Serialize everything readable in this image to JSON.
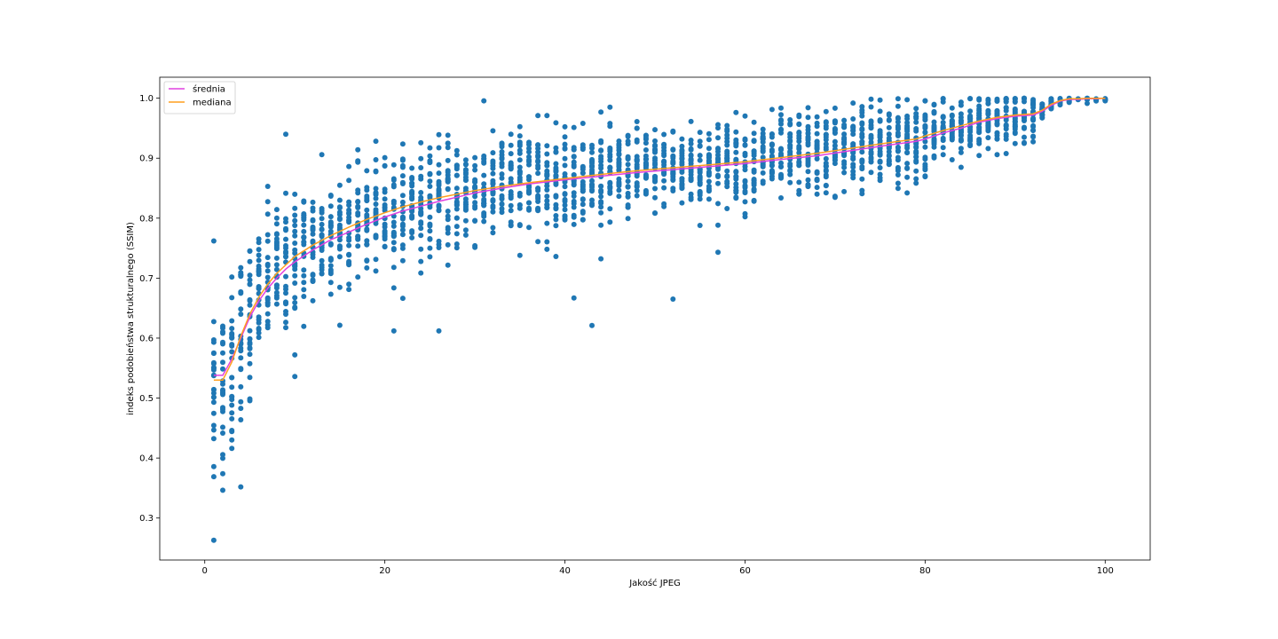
{
  "chart_data": {
    "type": "scatter",
    "title": "",
    "xlabel": "Jakość JPEG",
    "ylabel": "indeks podobieństwa strukturalnego (SSIM)",
    "xlim": [
      -5,
      105
    ],
    "ylim": [
      0.23,
      1.035
    ],
    "x_ticks": [
      0,
      20,
      40,
      60,
      80,
      100
    ],
    "y_ticks": [
      0.3,
      0.4,
      0.5,
      0.6,
      0.7,
      0.8,
      0.9,
      1.0
    ],
    "x_tick_labels": [
      "0",
      "20",
      "40",
      "60",
      "80",
      "100"
    ],
    "y_tick_labels": [
      "0.3",
      "0.4",
      "0.5",
      "0.6",
      "0.7",
      "0.8",
      "0.9",
      "1.0"
    ],
    "grid": false,
    "legend_position": "top-left",
    "scatter_color": "#1f77b4",
    "series": [
      {
        "name": "średnia",
        "color": "#e040e0",
        "x": [
          1,
          2,
          3,
          4,
          5,
          6,
          7,
          8,
          9,
          10,
          12,
          14,
          16,
          18,
          20,
          22,
          24,
          26,
          28,
          30,
          33,
          36,
          40,
          44,
          48,
          52,
          56,
          60,
          64,
          68,
          72,
          76,
          79,
          80,
          82,
          84,
          86,
          88,
          90,
          92,
          93,
          94,
          95,
          96,
          97,
          98,
          99,
          100
        ],
        "y": [
          0.538,
          0.538,
          0.565,
          0.6,
          0.635,
          0.662,
          0.683,
          0.7,
          0.715,
          0.727,
          0.747,
          0.764,
          0.777,
          0.79,
          0.802,
          0.812,
          0.82,
          0.828,
          0.835,
          0.842,
          0.85,
          0.857,
          0.864,
          0.87,
          0.876,
          0.881,
          0.886,
          0.891,
          0.898,
          0.904,
          0.913,
          0.922,
          0.928,
          0.932,
          0.942,
          0.95,
          0.96,
          0.966,
          0.97,
          0.972,
          0.978,
          0.988,
          0.995,
          0.998,
          0.998,
          0.999,
          0.999,
          1.0
        ]
      },
      {
        "name": "mediana",
        "color": "#ff9f1f",
        "x": [
          1,
          2,
          3,
          4,
          5,
          6,
          7,
          8,
          9,
          10,
          12,
          14,
          16,
          18,
          20,
          22,
          24,
          26,
          28,
          30,
          33,
          36,
          40,
          44,
          48,
          52,
          56,
          60,
          64,
          68,
          72,
          76,
          79,
          80,
          82,
          84,
          86,
          88,
          90,
          92,
          93,
          94,
          95,
          96,
          97,
          98,
          99,
          100
        ],
        "y": [
          0.53,
          0.53,
          0.56,
          0.603,
          0.64,
          0.668,
          0.69,
          0.708,
          0.722,
          0.736,
          0.755,
          0.771,
          0.785,
          0.798,
          0.809,
          0.819,
          0.827,
          0.834,
          0.84,
          0.846,
          0.853,
          0.859,
          0.866,
          0.873,
          0.879,
          0.884,
          0.889,
          0.894,
          0.901,
          0.908,
          0.917,
          0.926,
          0.932,
          0.937,
          0.946,
          0.954,
          0.962,
          0.968,
          0.972,
          0.974,
          0.98,
          0.99,
          0.996,
          0.999,
          0.999,
          1.0,
          1.0,
          1.0
        ]
      }
    ],
    "scatter_outliers": [
      [
        1,
        0.263
      ],
      [
        1,
        0.369
      ],
      [
        2,
        0.374
      ],
      [
        4,
        0.352
      ],
      [
        1,
        0.762
      ],
      [
        9,
        0.94
      ],
      [
        43,
        0.621
      ],
      [
        52,
        0.665
      ],
      [
        41,
        0.667
      ],
      [
        21,
        0.612
      ],
      [
        26,
        0.612
      ],
      [
        39,
        0.959
      ],
      [
        42,
        0.958
      ],
      [
        44,
        0.977
      ],
      [
        57,
        0.743
      ],
      [
        13,
        0.906
      ],
      [
        3,
        0.416
      ],
      [
        3,
        0.43
      ],
      [
        7,
        0.853
      ],
      [
        10,
        0.536
      ],
      [
        10,
        0.572
      ]
    ]
  }
}
